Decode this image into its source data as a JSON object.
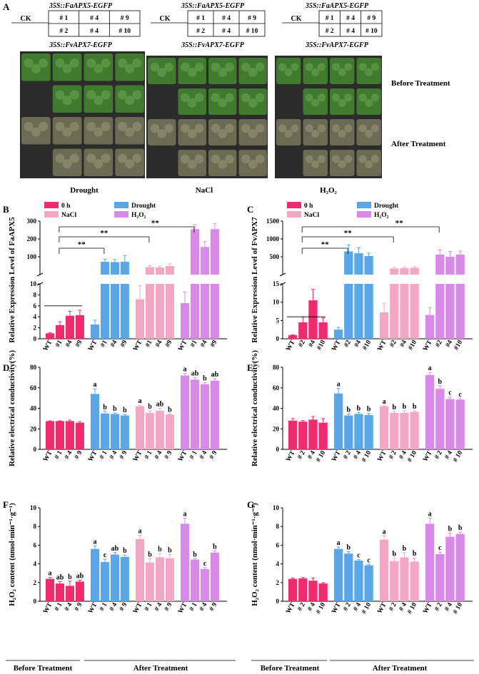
{
  "panel_letters": [
    "A",
    "B",
    "C",
    "D",
    "E",
    "F",
    "G"
  ],
  "panelA": {
    "fa_label": "35S::FaAPX5-EGFP",
    "fv_label": "35S::FvAPX7-EGFP",
    "ck": "CK",
    "row1": [
      "# 1",
      "# 4",
      "# 9"
    ],
    "row2": [
      "# 2",
      "# 4",
      "# 10"
    ],
    "columns": [
      "Drought",
      "NaCl",
      "H₂O₂"
    ],
    "rows": [
      "Before Treatment",
      "After Treatment"
    ],
    "photo_colors": {
      "before": "#3f7a2e",
      "after": "#6b6a52",
      "background": "#2b2b2b"
    }
  },
  "legend": {
    "items": [
      {
        "label": "0 h",
        "color": "#ee2b6c"
      },
      {
        "label": "Drought",
        "color": "#5aa6e6"
      },
      {
        "label": "NaCl",
        "color": "#f3a7c5"
      },
      {
        "label": "H₂O₂",
        "color": "#d98ae8"
      }
    ]
  },
  "footer": {
    "before": "Before Treatment",
    "after": "After Treatment"
  },
  "sig": "**",
  "chart_data": [
    {
      "id": "B",
      "type": "bar",
      "ylabel": "Relative Expression Level of FaAPX5",
      "categories": [
        "WT",
        "#1",
        "#4",
        "#9",
        "WT",
        "#1",
        "#4",
        "#9",
        "WT",
        "#1",
        "#4",
        "#9",
        "WT",
        "#1",
        "#4",
        "#9"
      ],
      "values": [
        1,
        2.5,
        4.2,
        4.3,
        2.6,
        72,
        70,
        72,
        7.2,
        42,
        40,
        48,
        6.5,
        255,
        155,
        255
      ],
      "errors": [
        0.1,
        0.6,
        0.8,
        0.9,
        0.8,
        15,
        15,
        35,
        2.5,
        8,
        8,
        12,
        2,
        25,
        30,
        30
      ],
      "colors": [
        "#ee2b6c",
        "#5aa6e6",
        "#f3a7c5",
        "#d98ae8"
      ],
      "axis_break": {
        "lower": [
          0,
          10
        ],
        "upper": [
          0,
          300
        ]
      },
      "lower_ticks": [
        "0",
        "2",
        "4",
        "6",
        "8",
        "10"
      ],
      "upper_ticks": [
        "100",
        "200",
        "300"
      ],
      "labels": []
    },
    {
      "id": "C",
      "type": "bar",
      "ylabel": "Relative Expression Level of FvAPX7",
      "categories": [
        "WT",
        "#2",
        "#4",
        "#10",
        "WT",
        "#2",
        "#4",
        "#10",
        "WT",
        "#2",
        "#4",
        "#10",
        "WT",
        "#2",
        "#4",
        "#10"
      ],
      "values": [
        1,
        4.5,
        10.5,
        4.5,
        2.5,
        650,
        600,
        520,
        7.2,
        170,
        180,
        190,
        6.5,
        560,
        500,
        560
      ],
      "errors": [
        0.1,
        1.5,
        3,
        1.2,
        0.6,
        180,
        150,
        80,
        2.5,
        30,
        30,
        30,
        2,
        130,
        150,
        100
      ],
      "colors": [
        "#ee2b6c",
        "#5aa6e6",
        "#f3a7c5",
        "#d98ae8"
      ],
      "axis_break": {
        "lower": [
          0,
          15
        ],
        "upper": [
          0,
          1500
        ]
      },
      "lower_ticks": [
        "0",
        "5",
        "10",
        "15"
      ],
      "upper_ticks": [
        "500",
        "1000",
        "1500"
      ],
      "labels": []
    },
    {
      "id": "D",
      "type": "bar",
      "ylabel": "Relative electrical conductivity(%)",
      "categories": [
        "WT",
        "# 1",
        "# 4",
        "# 9",
        "WT",
        "# 1",
        "# 4",
        "# 9",
        "WT",
        "# 1",
        "# 4",
        "# 9",
        "WT",
        "# 1",
        "# 4",
        "# 9"
      ],
      "values": [
        27.5,
        27.5,
        27.5,
        26,
        54,
        35,
        34.5,
        33,
        42,
        35.5,
        37.5,
        34,
        72,
        68,
        63.5,
        67
      ],
      "errors": [
        0.3,
        0.3,
        1,
        1,
        5,
        2,
        1,
        1,
        1,
        2,
        2.5,
        0.5,
        2,
        2,
        1.5,
        2
      ],
      "colors": [
        "#ee2b6c",
        "#5aa6e6",
        "#f3a7c5",
        "#d98ae8"
      ],
      "ylim": [
        0,
        80
      ],
      "ticks": [
        "0",
        "20",
        "40",
        "60",
        "80"
      ],
      "labels": [
        "",
        "",
        "",
        "",
        "a",
        "b",
        "b",
        "b",
        "a",
        "b",
        "ab",
        "b",
        "a",
        "ab",
        "b",
        "ab"
      ]
    },
    {
      "id": "E",
      "type": "bar",
      "ylabel": "Relative electrical conductivity(%)",
      "categories": [
        "WT",
        "# 2",
        "# 4",
        "# 10",
        "WT",
        "# 2",
        "# 4",
        "# 10",
        "WT",
        "# 2",
        "# 4",
        "# 10",
        "WT",
        "# 2",
        "# 4",
        "# 10"
      ],
      "values": [
        28,
        27,
        29,
        26,
        54.5,
        33,
        34.5,
        33.5,
        42,
        35.5,
        35.5,
        36.5,
        72.5,
        59,
        49,
        48.5
      ],
      "errors": [
        2,
        1,
        3,
        4,
        5,
        1.5,
        1.5,
        1.5,
        0.5,
        1.5,
        2,
        1,
        2.5,
        3,
        2,
        1
      ],
      "colors": [
        "#ee2b6c",
        "#5aa6e6",
        "#f3a7c5",
        "#d98ae8"
      ],
      "ylim": [
        0,
        80
      ],
      "ticks": [
        "0",
        "20",
        "40",
        "60",
        "80"
      ],
      "labels": [
        "",
        "",
        "",
        "",
        "a",
        "b",
        "b",
        "b",
        "a",
        "b",
        "b",
        "b",
        "a",
        "b",
        "c",
        "c"
      ]
    },
    {
      "id": "F",
      "type": "bar",
      "ylabel": "H₂O₂ content (nmol·min⁻¹·g⁻¹)",
      "categories": [
        "WT",
        "# 1",
        "# 4",
        "# 9",
        "WT",
        "# 1",
        "# 4",
        "# 9",
        "WT",
        "# 1",
        "# 4",
        "# 9",
        "WT",
        "# 1",
        "# 4",
        "# 9"
      ],
      "values": [
        2.4,
        1.9,
        1.65,
        2.1,
        5.6,
        4.2,
        5,
        4.75,
        6.65,
        4.15,
        4.7,
        4.6,
        8.3,
        4.45,
        3.45,
        5.2
      ],
      "errors": [
        0.15,
        0.2,
        0.5,
        0.15,
        0.3,
        0.3,
        0.2,
        0.2,
        0.4,
        0.4,
        0.4,
        0.4,
        0.6,
        0.1,
        0.15,
        0.2
      ],
      "colors": [
        "#ee2b6c",
        "#5aa6e6",
        "#f3a7c5",
        "#d98ae8"
      ],
      "ylim": [
        0,
        10
      ],
      "ticks": [
        "0",
        "2",
        "4",
        "6",
        "8",
        "10"
      ],
      "labels": [
        "a",
        "ab",
        "b",
        "ab",
        "a",
        "c",
        "ab",
        "b",
        "a",
        "b",
        "b",
        "b",
        "a",
        "b",
        "c",
        "b"
      ]
    },
    {
      "id": "G",
      "type": "bar",
      "ylabel": "H₂O₂ content (nmol·min⁻¹·g⁻¹)",
      "categories": [
        "WT",
        "# 2",
        "# 4",
        "# 10",
        "WT",
        "# 2",
        "# 4",
        "# 10",
        "WT",
        "# 2",
        "# 4",
        "# 10",
        "WT",
        "# 2",
        "# 4",
        "# 10"
      ],
      "values": [
        2.4,
        2.45,
        2.2,
        1.9,
        5.6,
        5.1,
        4.35,
        3.85,
        6.6,
        4.3,
        4.7,
        4.25,
        8.3,
        5.05,
        6.9,
        7.2
      ],
      "errors": [
        0.1,
        0.1,
        0.3,
        0.1,
        0.2,
        0.2,
        0.1,
        0.1,
        0.4,
        0.3,
        0.5,
        0.4,
        0.6,
        0.2,
        0.4,
        0.2
      ],
      "colors": [
        "#ee2b6c",
        "#5aa6e6",
        "#f3a7c5",
        "#d98ae8"
      ],
      "ylim": [
        0,
        10
      ],
      "ticks": [
        "0",
        "2",
        "4",
        "6",
        "8",
        "10"
      ],
      "labels": [
        "",
        "",
        "",
        "",
        "a",
        "b",
        "c",
        "c",
        "a",
        "b",
        "b",
        "b",
        "a",
        "c",
        "b",
        "b"
      ]
    }
  ]
}
